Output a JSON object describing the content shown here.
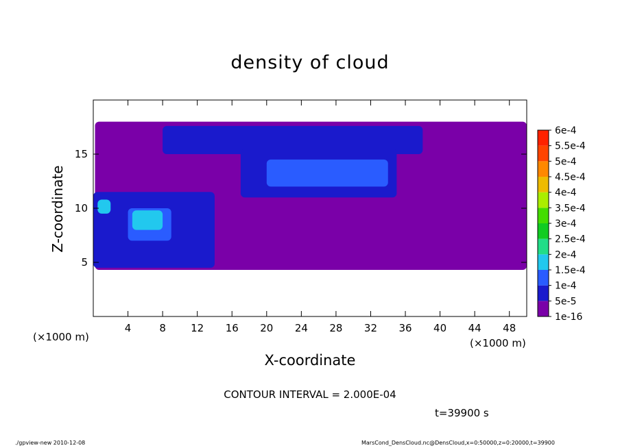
{
  "chart_data": {
    "type": "heatmap",
    "title": "density of cloud",
    "xlabel": "X-coordinate",
    "ylabel": "Z-coordinate",
    "x_unit": "(×1000 m)",
    "xlim": [
      0,
      50
    ],
    "ylim": [
      0,
      20
    ],
    "x_ticks": [
      4,
      8,
      12,
      16,
      20,
      24,
      28,
      32,
      36,
      40,
      44,
      48
    ],
    "y_ticks": [
      5,
      10,
      15
    ],
    "color_levels": [
      "1e-16",
      "5e-5",
      "1e-4",
      "1.5e-4",
      "2e-4",
      "2.5e-4",
      "3e-4",
      "3.5e-4",
      "4e-4",
      "4.5e-4",
      "5e-4",
      "5.5e-4",
      "6e-4"
    ],
    "level_colors": [
      "#7a00a8",
      "#1a1acc",
      "#2a5cff",
      "#22c8ee",
      "#22dd88",
      "#11cc22",
      "#44dd00",
      "#aaee00",
      "#eebb00",
      "#ff8800",
      "#ff4400",
      "#ff2200",
      "#ff9999"
    ],
    "regions": [
      {
        "level": 0,
        "x": [
          0.2,
          50
        ],
        "z": [
          4.3,
          18.0
        ]
      },
      {
        "level": 1,
        "x": [
          8,
          38
        ],
        "z": [
          15.0,
          17.6
        ]
      },
      {
        "level": 1,
        "x": [
          17,
          35
        ],
        "z": [
          11.0,
          15.5
        ]
      },
      {
        "level": 1,
        "x": [
          0,
          14
        ],
        "z": [
          4.5,
          11.5
        ]
      },
      {
        "level": 2,
        "x": [
          20,
          34
        ],
        "z": [
          12.0,
          14.5
        ]
      },
      {
        "level": 2,
        "x": [
          4,
          9
        ],
        "z": [
          7.0,
          10.0
        ]
      },
      {
        "level": 3,
        "x": [
          4.5,
          8
        ],
        "z": [
          8.0,
          9.8
        ]
      },
      {
        "level": 3,
        "x": [
          0.5,
          2.0
        ],
        "z": [
          9.5,
          10.8
        ]
      }
    ],
    "contour_interval": "CONTOUR INTERVAL = 2.000E-04",
    "time": "t=39900 s"
  },
  "footer": {
    "left": "./gpview-new  2010-12-08",
    "right": "MarsCond_DensCloud.nc@DensCloud,x=0:50000,z=0:20000,t=39900"
  }
}
